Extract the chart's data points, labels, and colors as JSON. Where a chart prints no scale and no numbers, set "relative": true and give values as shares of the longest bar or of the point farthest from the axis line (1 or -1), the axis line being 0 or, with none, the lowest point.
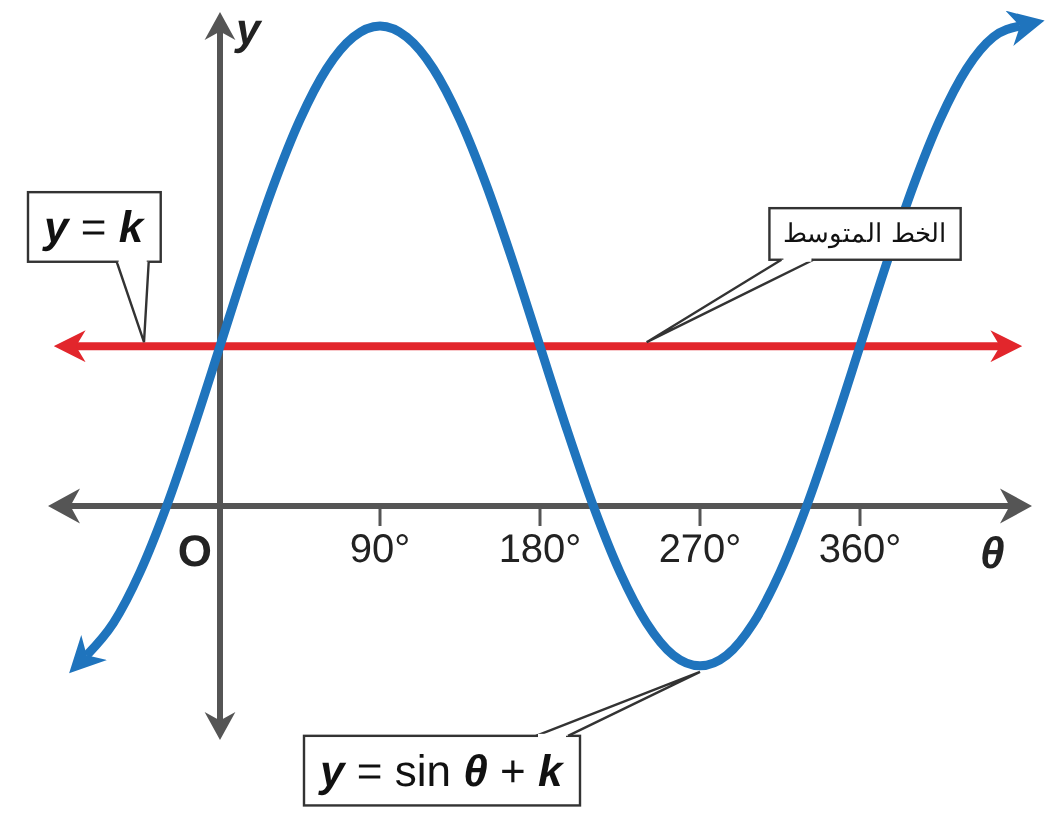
{
  "chart_data": {
    "type": "line",
    "relative": true,
    "xlabel": "θ",
    "ylabel": "y",
    "xlim": [
      -90,
      450
    ],
    "xticks": [
      {
        "value": 90,
        "label": "90°"
      },
      {
        "value": 180,
        "label": "180°"
      },
      {
        "value": 270,
        "label": "270°"
      },
      {
        "value": 360,
        "label": "360°"
      }
    ],
    "series": [
      {
        "color": "#1f74bd",
        "x": [
          -75,
          -60,
          -45,
          -30,
          -15,
          0,
          15,
          30,
          45,
          60,
          75,
          90,
          105,
          120,
          135,
          150,
          165,
          180,
          195,
          210,
          225,
          240,
          255,
          270,
          285,
          300,
          315,
          330,
          345,
          360,
          375,
          390,
          405,
          420,
          435,
          450
        ],
        "values": [
          -0.311,
          -0.244,
          -0.138,
          0,
          0.161,
          0.333,
          0.506,
          0.667,
          0.805,
          0.911,
          0.977,
          1,
          0.977,
          0.911,
          0.805,
          0.667,
          0.506,
          0.333,
          0.161,
          0,
          -0.138,
          -0.244,
          -0.311,
          -0.333,
          -0.311,
          -0.244,
          -0.138,
          0,
          0.161,
          0.333,
          0.506,
          0.667,
          0.805,
          0.911,
          0.977,
          1
        ]
      }
    ],
    "ref_lines": [
      {
        "axis": "y",
        "value": 0.333,
        "label": "y = k",
        "color": "#e2262c"
      }
    ],
    "annotations": [
      {
        "text": "الخط المتوسط",
        "x": 240,
        "y": 0.333
      },
      {
        "text": "y = sin θ + k",
        "x": 270,
        "y": -0.333
      },
      "O"
    ],
    "grid": false,
    "marker": "none",
    "line_style": "solid"
  }
}
